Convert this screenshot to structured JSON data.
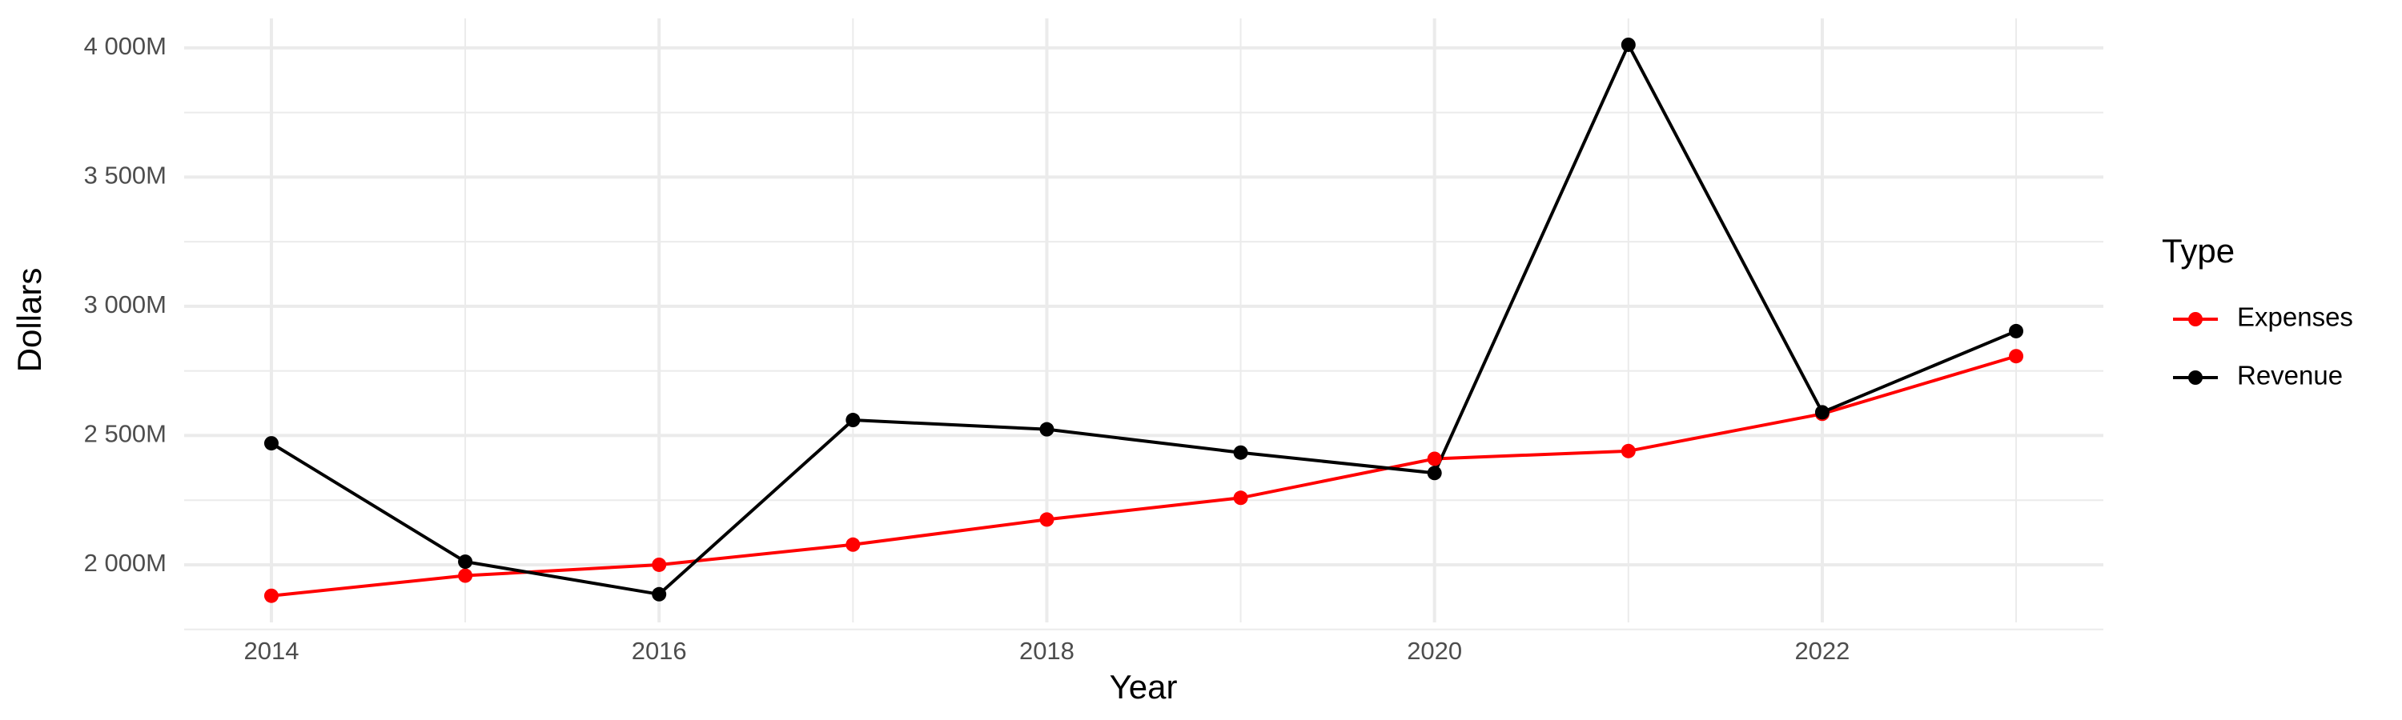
{
  "chart_data": {
    "type": "line",
    "x_label": "Year",
    "y_label": "Dollars",
    "legend_title": "Type",
    "x": [
      2014,
      2015,
      2016,
      2017,
      2018,
      2019,
      2020,
      2021,
      2022,
      2023
    ],
    "series": [
      {
        "name": "Expenses",
        "color": "#ff0000",
        "values": [
          1880000000,
          1958000000,
          2000000000,
          2078000000,
          2175000000,
          2259000000,
          2410000000,
          2440000000,
          2584000000,
          2807000000
        ]
      },
      {
        "name": "Revenue",
        "color": "#000000",
        "values": [
          2470000000,
          2012000000,
          1886000000,
          2560000000,
          2524000000,
          2434000000,
          2355000000,
          4012000000,
          2590000000,
          2904000000
        ]
      }
    ],
    "xlim": [
      2013.55,
      2023.45
    ],
    "xticks": [
      2014,
      2016,
      2018,
      2020,
      2022
    ],
    "ylim": [
      1777000000,
      4114000000
    ],
    "yticks": [
      {
        "value": 2000000000,
        "label": "2 000M"
      },
      {
        "value": 2500000000,
        "label": "2 500M"
      },
      {
        "value": 3000000000,
        "label": "3 000M"
      },
      {
        "value": 3500000000,
        "label": "3 500M"
      },
      {
        "value": 4000000000,
        "label": "4 000M"
      }
    ],
    "grid": true,
    "legend_position": "right"
  }
}
